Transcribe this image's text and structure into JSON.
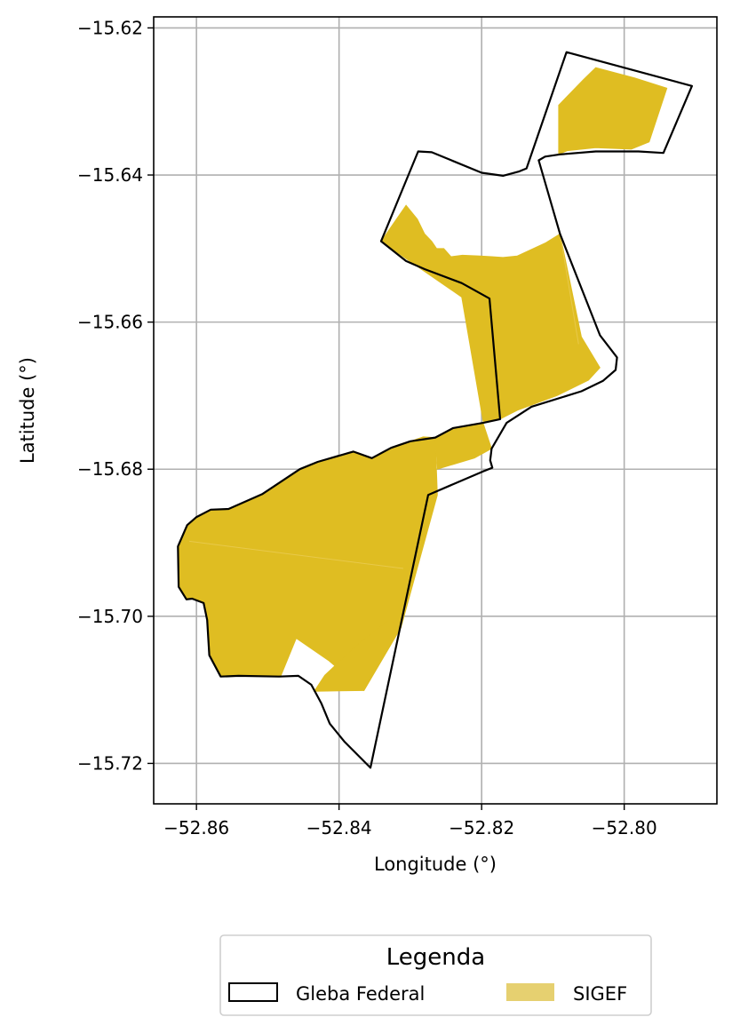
{
  "chart_data": {
    "type": "map",
    "xlabel": "Longitude (°)",
    "ylabel": "Latitude (°)",
    "xlim": [
      -52.866,
      -52.787
    ],
    "ylim": [
      -15.7255,
      -15.6185
    ],
    "xticks": [
      -52.86,
      -52.84,
      -52.82,
      -52.8
    ],
    "xtick_labels": [
      "−52.86",
      "−52.84",
      "−52.82",
      "−52.80"
    ],
    "yticks": [
      -15.62,
      -15.64,
      -15.66,
      -15.68,
      -15.7,
      -15.72
    ],
    "ytick_labels": [
      "−15.62",
      "−15.64",
      "−15.66",
      "−15.68",
      "−15.70",
      "−15.72"
    ],
    "grid": true,
    "legend": {
      "title": "Legenda",
      "position": "bottom-center",
      "entries": [
        {
          "label": "Gleba Federal",
          "style": "outline",
          "color": "#000000"
        },
        {
          "label": "SIGEF",
          "style": "fill",
          "color": "#e6d070"
        }
      ]
    },
    "colors": {
      "sigef": "#dfbd22",
      "gleba_outline": "#000000",
      "grid": "#b0b0b0"
    },
    "layers": [
      {
        "name": "Gleba Federal",
        "style": "outline",
        "polygons": [
          [
            [
              -52.8356,
              -15.7206
            ],
            [
              -52.8392,
              -15.7171
            ],
            [
              -52.8413,
              -15.7146
            ],
            [
              -52.8425,
              -15.7118
            ],
            [
              -52.8439,
              -15.7093
            ],
            [
              -52.8457,
              -15.7081
            ],
            [
              -52.8484,
              -15.7082
            ],
            [
              -52.8541,
              -15.7081
            ],
            [
              -52.8566,
              -15.7082
            ],
            [
              -52.8582,
              -15.7053
            ],
            [
              -52.8585,
              -15.7005
            ],
            [
              -52.859,
              -15.6982
            ],
            [
              -52.8606,
              -15.6976
            ],
            [
              -52.8614,
              -15.6977
            ],
            [
              -52.8625,
              -15.696
            ],
            [
              -52.8626,
              -15.6905
            ],
            [
              -52.8613,
              -15.6876
            ],
            [
              -52.86,
              -15.6865
            ],
            [
              -52.858,
              -15.6855
            ],
            [
              -52.8555,
              -15.6854
            ],
            [
              -52.8508,
              -15.6834
            ],
            [
              -52.8455,
              -15.68
            ],
            [
              -52.843,
              -15.679
            ],
            [
              -52.838,
              -15.6776
            ],
            [
              -52.8354,
              -15.6785
            ],
            [
              -52.8327,
              -15.6771
            ],
            [
              -52.83,
              -15.6762
            ],
            [
              -52.8282,
              -15.6756
            ],
            [
              -52.822,
              -15.6736
            ],
            [
              -52.8174,
              -15.6732
            ],
            [
              -52.8189,
              -15.6568
            ],
            [
              -52.8228,
              -15.6547
            ],
            [
              -52.828,
              -15.6528
            ],
            [
              -52.8306,
              -15.6517
            ],
            [
              -52.8341,
              -15.649
            ],
            [
              -52.8289,
              -15.6368
            ],
            [
              -52.824,
              -15.6384
            ],
            [
              -52.819,
              -15.64
            ],
            [
              -52.817,
              -15.6401
            ],
            [
              -52.8147,
              -15.6392
            ],
            [
              -52.817,
              -15.6392
            ],
            [
              -52.82,
              -15.6388
            ],
            [
              -52.827,
              -15.6369
            ],
            [
              -52.8289,
              -15.6368
            ],
            [
              -52.8341,
              -15.649
            ],
            [
              -52.8282,
              -15.653
            ],
            [
              -52.8289,
              -15.6368
            ],
            [
              -52.8341,
              -15.649
            ]
          ]
        ]
      },
      {
        "name": "SIGEF",
        "style": "fill",
        "polygons": []
      }
    ]
  }
}
